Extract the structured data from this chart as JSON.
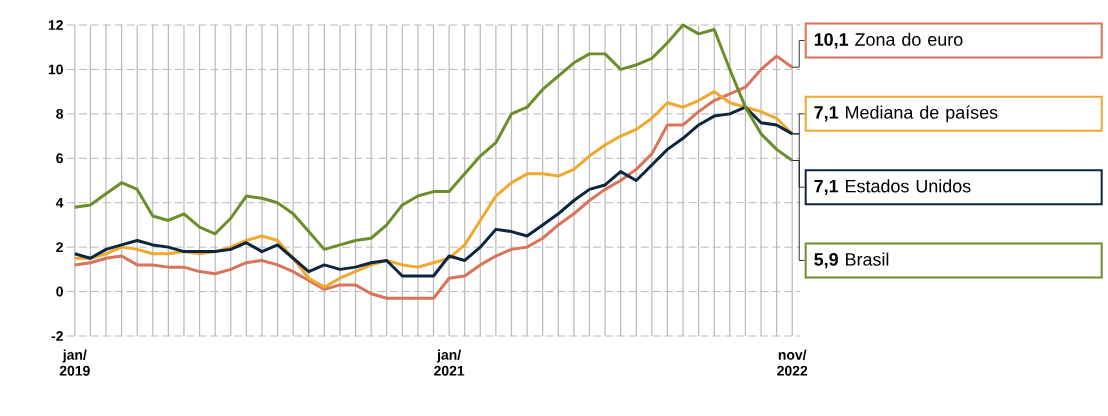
{
  "chart_data": {
    "type": "line",
    "categories": [
      "jan/ 2019",
      null,
      null,
      null,
      null,
      null,
      null,
      null,
      null,
      null,
      null,
      null,
      null,
      null,
      null,
      null,
      null,
      null,
      null,
      null,
      null,
      null,
      null,
      null,
      "jan/ 2021",
      null,
      null,
      null,
      null,
      null,
      null,
      null,
      null,
      null,
      null,
      null,
      null,
      null,
      null,
      null,
      null,
      null,
      null,
      null,
      null,
      null,
      "nov/ 2022"
    ],
    "ylim": [
      -2,
      12
    ],
    "yticks": [
      -2,
      0,
      2,
      4,
      6,
      8,
      10,
      12
    ],
    "grid": true,
    "legend": "right",
    "line_style": "solid",
    "series": [
      {
        "name": "Zona do euro",
        "color": "#d9735a",
        "values": [
          1.2,
          1.3,
          1.5,
          1.6,
          1.2,
          1.2,
          1.1,
          1.1,
          0.9,
          0.8,
          1.0,
          1.3,
          1.4,
          1.2,
          0.9,
          0.5,
          0.1,
          0.3,
          0.3,
          -0.1,
          -0.3,
          -0.3,
          -0.3,
          -0.3,
          0.6,
          0.7,
          1.2,
          1.6,
          1.9,
          2.0,
          2.4,
          3.0,
          3.5,
          4.1,
          4.6,
          5.0,
          5.5,
          6.2,
          7.5,
          7.5,
          8.1,
          8.6,
          8.9,
          9.2,
          10.0,
          10.6,
          10.1
        ],
        "value_labels": [
          null,
          null,
          null,
          null,
          null,
          null,
          null,
          null,
          null,
          null,
          null,
          null,
          null,
          null,
          null,
          null,
          null,
          null,
          null,
          null,
          null,
          null,
          null,
          null,
          null,
          null,
          null,
          null,
          null,
          null,
          null,
          null,
          null,
          null,
          null,
          null,
          null,
          null,
          null,
          null,
          null,
          null,
          null,
          null,
          null,
          null,
          "10,1"
        ]
      },
      {
        "name": "Mediana de países",
        "color": "#f0a830",
        "values": [
          1.5,
          1.5,
          1.7,
          2.0,
          1.9,
          1.7,
          1.7,
          1.8,
          1.7,
          1.8,
          2.0,
          2.3,
          2.5,
          2.3,
          1.5,
          0.6,
          0.2,
          0.6,
          0.9,
          1.2,
          1.4,
          1.2,
          1.1,
          1.3,
          1.5,
          2.1,
          3.2,
          4.3,
          4.9,
          5.3,
          5.3,
          5.2,
          5.5,
          6.1,
          6.6,
          7.0,
          7.3,
          7.8,
          8.5,
          8.3,
          8.6,
          9.0,
          8.5,
          8.3,
          8.1,
          7.8,
          7.1
        ],
        "value_labels": [
          null,
          null,
          null,
          null,
          null,
          null,
          null,
          null,
          null,
          null,
          null,
          null,
          null,
          null,
          null,
          null,
          null,
          null,
          null,
          null,
          null,
          null,
          null,
          null,
          null,
          null,
          null,
          null,
          null,
          null,
          null,
          null,
          null,
          null,
          null,
          null,
          null,
          null,
          null,
          null,
          null,
          null,
          null,
          null,
          null,
          null,
          "7,1"
        ]
      },
      {
        "name": "Estados Unidos",
        "color": "#0d2640",
        "values": [
          1.7,
          1.5,
          1.9,
          2.1,
          2.3,
          2.1,
          2.0,
          1.8,
          1.8,
          1.8,
          1.9,
          2.2,
          1.8,
          2.1,
          1.5,
          0.9,
          1.2,
          1.0,
          1.1,
          1.3,
          1.4,
          0.7,
          0.7,
          0.7,
          1.6,
          1.4,
          2.0,
          2.8,
          2.7,
          2.5,
          3.0,
          3.5,
          4.1,
          4.6,
          4.8,
          5.4,
          5.0,
          5.7,
          6.4,
          6.9,
          7.5,
          7.9,
          8.0,
          8.3,
          7.6,
          7.5,
          7.1
        ],
        "value_labels": [
          null,
          null,
          null,
          null,
          null,
          null,
          null,
          null,
          null,
          null,
          null,
          null,
          null,
          null,
          null,
          null,
          null,
          null,
          null,
          null,
          null,
          null,
          null,
          null,
          null,
          null,
          null,
          null,
          null,
          null,
          null,
          null,
          null,
          null,
          null,
          null,
          null,
          null,
          null,
          null,
          null,
          null,
          null,
          null,
          null,
          null,
          "7,1"
        ]
      },
      {
        "name": "Brasil",
        "color": "#6b8e2a",
        "values": [
          3.8,
          3.9,
          4.4,
          4.9,
          4.6,
          3.4,
          3.2,
          3.5,
          2.9,
          2.6,
          3.3,
          4.3,
          4.2,
          4.0,
          3.5,
          2.7,
          1.9,
          2.1,
          2.3,
          2.4,
          3.0,
          3.9,
          4.3,
          4.5,
          4.5,
          5.3,
          6.1,
          6.7,
          8.0,
          8.3,
          9.1,
          9.7,
          10.3,
          10.7,
          10.7,
          10.0,
          10.2,
          10.5,
          11.2,
          12.0,
          11.6,
          11.8,
          10.0,
          8.3,
          7.1,
          6.4,
          5.9
        ],
        "value_labels": [
          null,
          null,
          null,
          null,
          null,
          null,
          null,
          null,
          null,
          null,
          null,
          null,
          null,
          null,
          null,
          null,
          null,
          null,
          null,
          null,
          null,
          null,
          null,
          null,
          null,
          null,
          null,
          null,
          null,
          null,
          null,
          null,
          null,
          null,
          null,
          null,
          null,
          null,
          null,
          null,
          null,
          null,
          null,
          null,
          null,
          null,
          "5,9"
        ]
      }
    ]
  }
}
